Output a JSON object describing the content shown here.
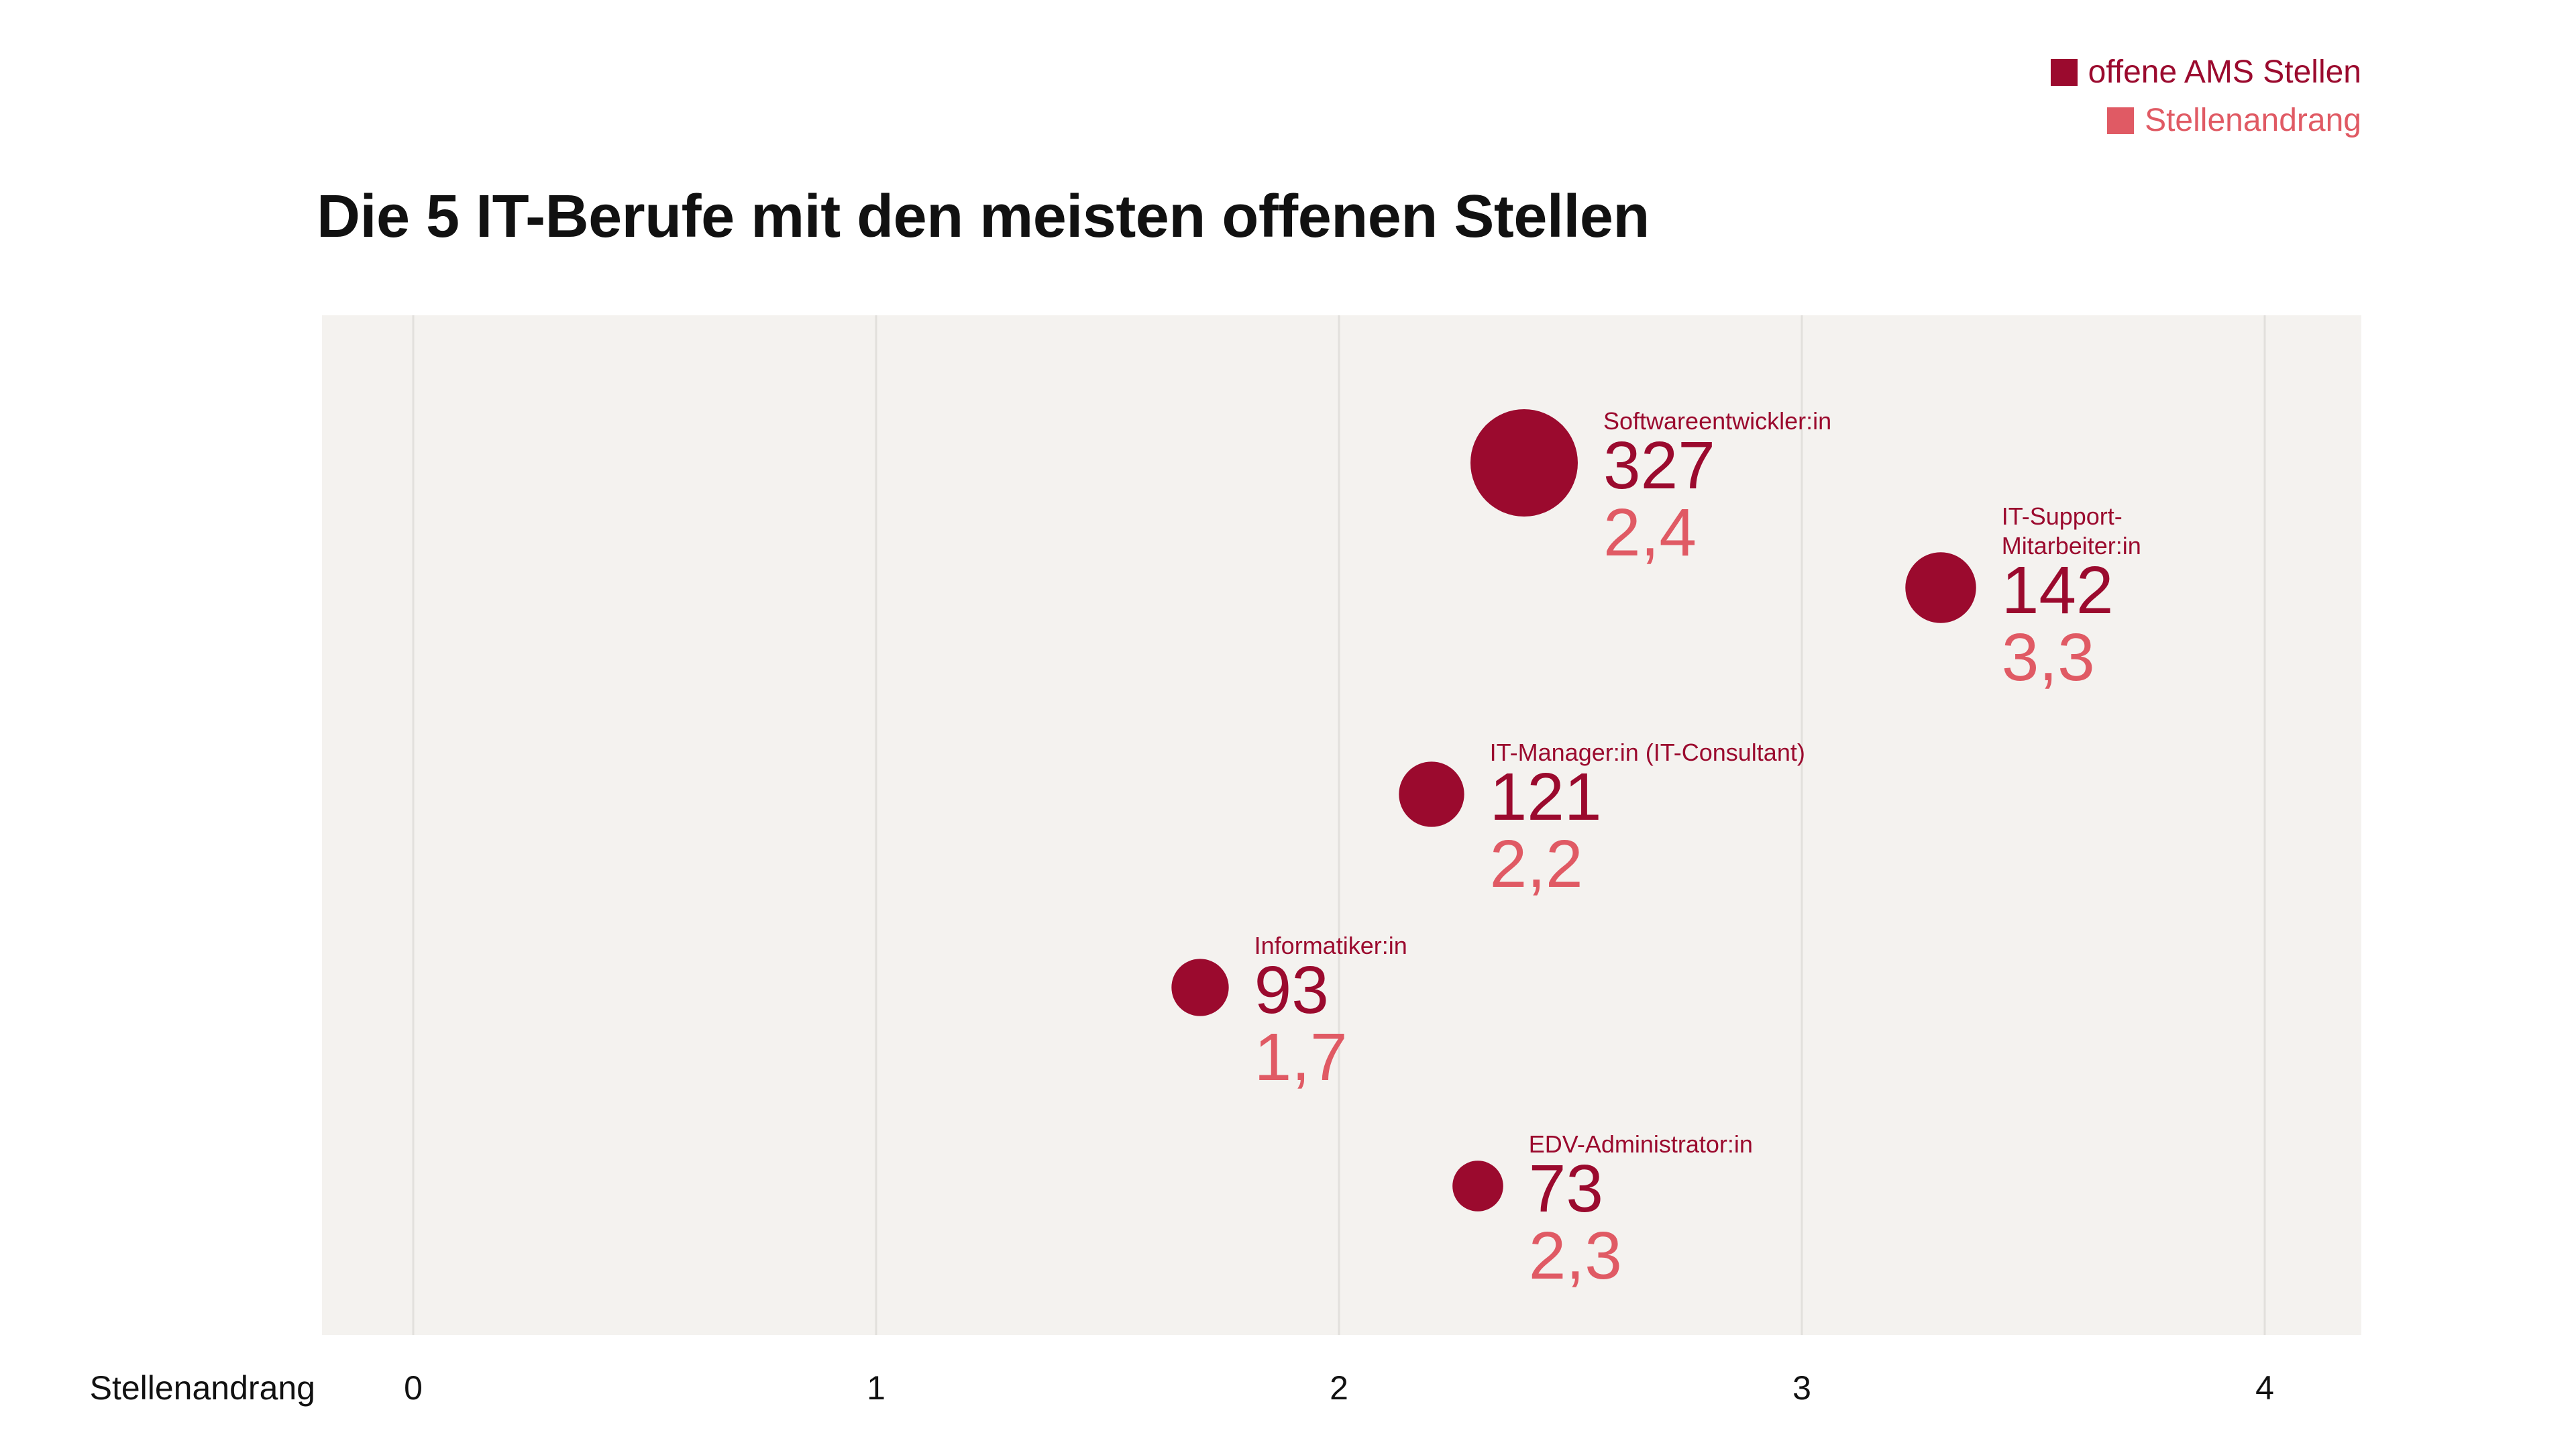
{
  "chart_data": {
    "type": "scatter",
    "title": "Die 5 IT-Berufe mit den meisten offenen Stellen",
    "xlabel": "Stellenandrang",
    "ylabel": "",
    "xlim": [
      0,
      4
    ],
    "x_ticks": [
      "0",
      "1",
      "2",
      "3",
      "4"
    ],
    "grid": true,
    "legend_position": "top-right",
    "legend": [
      {
        "label": "offene AMS Stellen",
        "color": "#9b0a2e"
      },
      {
        "label": "Stellenandrang",
        "color": "#e05a64"
      }
    ],
    "size_encoding": "offene AMS Stellen",
    "points": [
      {
        "name": "Softwareentwickler:in",
        "label_lines": [
          "Softwareentwickler:in"
        ],
        "open_positions": 327,
        "stellenandrang": 2.4,
        "display_open": "327",
        "display_andrang": "2,4"
      },
      {
        "name": "IT-Support-Mitarbeiter:in",
        "label_lines": [
          "IT-Support-",
          "Mitarbeiter:in"
        ],
        "open_positions": 142,
        "stellenandrang": 3.3,
        "display_open": "142",
        "display_andrang": "3,3"
      },
      {
        "name": "IT-Manager:in (IT-Consultant)",
        "label_lines": [
          "IT-Manager:in (IT-Consultant)"
        ],
        "open_positions": 121,
        "stellenandrang": 2.2,
        "display_open": "121",
        "display_andrang": "2,2"
      },
      {
        "name": "Informatiker:in",
        "label_lines": [
          "Informatiker:in"
        ],
        "open_positions": 93,
        "stellenandrang": 1.7,
        "display_open": "93",
        "display_andrang": "1,7"
      },
      {
        "name": "EDV-Administrator:in",
        "label_lines": [
          "EDV-Administrator:in"
        ],
        "open_positions": 73,
        "stellenandrang": 2.3,
        "display_open": "73",
        "display_andrang": "2,3"
      }
    ]
  },
  "colors": {
    "primary": "#9b0a2e",
    "secondary": "#e05a64",
    "plot_background": "#f4f2ef",
    "grid": "#e2e0dc",
    "text": "#111111"
  }
}
